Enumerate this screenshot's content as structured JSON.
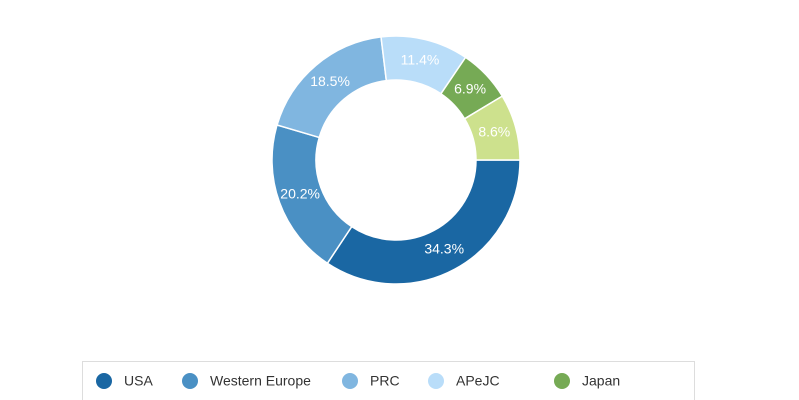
{
  "chart_data": {
    "type": "donut",
    "categories": [
      "USA",
      "Western Europe",
      "PRC",
      "APeJC",
      "Japan",
      null
    ],
    "values": [
      34.3,
      20.2,
      18.5,
      11.4,
      6.9,
      8.6
    ],
    "value_labels": [
      "34.3%",
      "20.2%",
      "18.5%",
      "11.4%",
      "6.9%",
      "8.6%"
    ],
    "colors": [
      "#1a67a3",
      "#4a90c4",
      "#80b6e0",
      "#b9ddf9",
      "#76aa55",
      "#cde18d"
    ],
    "legend": "bottom"
  }
}
